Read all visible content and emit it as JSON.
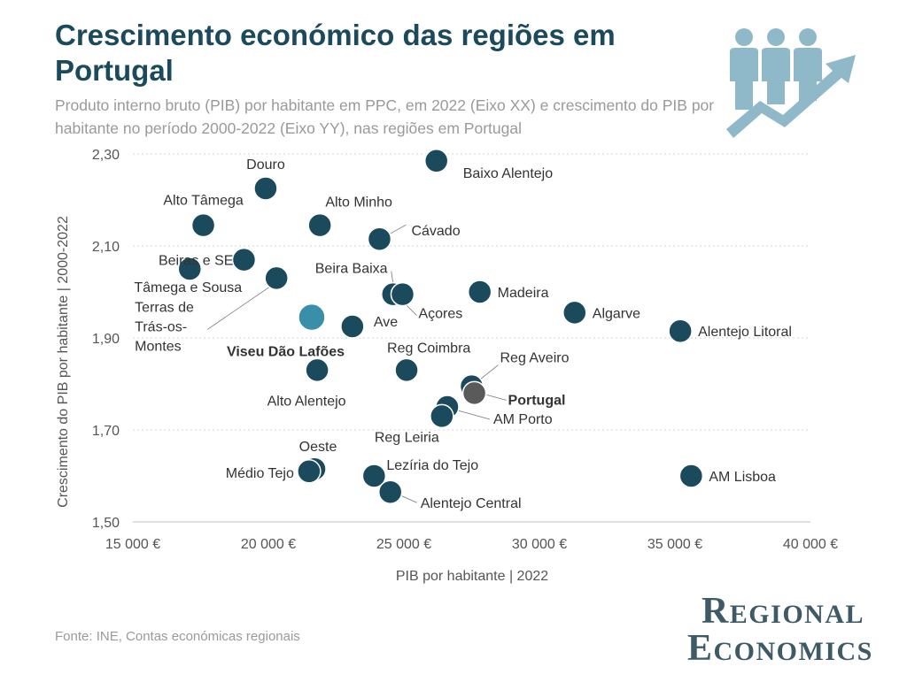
{
  "header": {
    "title": "Crescimento económico das regiões em Portugal",
    "subtitle": "Produto interno bruto (PIB) por habitante em PPC, em 2022 (Eixo XX) e crescimento do PIB por habitante no período 2000-2022 (Eixo YY), nas regiões em Portugal"
  },
  "footer": {
    "source": "Fonte: INE, Contas económicas regionais",
    "logo_line1_cap": "R",
    "logo_line1_rest": "EGIONAL",
    "logo_line2_cap": "E",
    "logo_line2_rest": "CONOMICS"
  },
  "colors": {
    "point": "#1b4a5c",
    "highlight": "#3a8fa8",
    "portugal": "#5a5a5a",
    "title": "#1b4a5c",
    "icon": "#8fb9c9"
  },
  "icon": "people-growth-arrow-icon",
  "chart_data": {
    "type": "scatter",
    "xlabel": "PIB por habitante | 2022",
    "ylabel": "Crescimento do PIB por habitante | 2000-2022",
    "xlim": [
      15000,
      40000
    ],
    "ylim": [
      1.5,
      2.3
    ],
    "xticks": [
      15000,
      20000,
      25000,
      30000,
      35000,
      40000
    ],
    "xtick_labels": [
      "15 000 €",
      "20 000 €",
      "25 000 €",
      "30 000 €",
      "35 000 €",
      "40 000 €"
    ],
    "yticks": [
      1.5,
      1.7,
      1.9,
      2.1,
      2.3
    ],
    "ytick_labels": [
      "1,50",
      "1,70",
      "1,90",
      "2,10",
      "2,30"
    ],
    "grid": "horizontal",
    "points": [
      {
        "label": "Douro",
        "x": 19900,
        "y": 2.225
      },
      {
        "label": "Baixo Alentejo",
        "x": 26200,
        "y": 2.285
      },
      {
        "label": "Alto Tâmega",
        "x": 17600,
        "y": 2.145
      },
      {
        "label": "Alto Minho",
        "x": 21900,
        "y": 2.145
      },
      {
        "label": "Cávado",
        "x": 24100,
        "y": 2.115
      },
      {
        "label": "Beiras e SE",
        "x": 19100,
        "y": 2.07
      },
      {
        "label": "Tâmega e Sousa",
        "x": 17100,
        "y": 2.05
      },
      {
        "label": "Terras de Trás-os-Montes",
        "x": 20300,
        "y": 2.03
      },
      {
        "label": "Beira Baixa",
        "x": 24600,
        "y": 1.995
      },
      {
        "label": "Açores",
        "x": 24950,
        "y": 1.995
      },
      {
        "label": "Madeira",
        "x": 27800,
        "y": 2.0
      },
      {
        "label": "Algarve",
        "x": 31300,
        "y": 1.955
      },
      {
        "label": "Viseu Dão Lafões",
        "x": 21600,
        "y": 1.945,
        "highlight": true
      },
      {
        "label": "Ave",
        "x": 23100,
        "y": 1.925
      },
      {
        "label": "Alentejo Litoral",
        "x": 35200,
        "y": 1.915
      },
      {
        "label": "Alto Alentejo",
        "x": 21800,
        "y": 1.83
      },
      {
        "label": "Reg Coimbra",
        "x": 25100,
        "y": 1.83
      },
      {
        "label": "Reg Aveiro",
        "x": 27500,
        "y": 1.795
      },
      {
        "label": "Portugal",
        "x": 27600,
        "y": 1.78,
        "highlight": true
      },
      {
        "label": "AM Porto",
        "x": 26600,
        "y": 1.75
      },
      {
        "label": "Reg Leiria",
        "x": 26400,
        "y": 1.73
      },
      {
        "label": "Oeste",
        "x": 21700,
        "y": 1.615
      },
      {
        "label": "Médio Tejo",
        "x": 21500,
        "y": 1.61
      },
      {
        "label": "Lezíria do Tejo",
        "x": 23900,
        "y": 1.6
      },
      {
        "label": "Alentejo Central",
        "x": 24500,
        "y": 1.565
      },
      {
        "label": "AM Lisboa",
        "x": 35600,
        "y": 1.6
      }
    ]
  }
}
